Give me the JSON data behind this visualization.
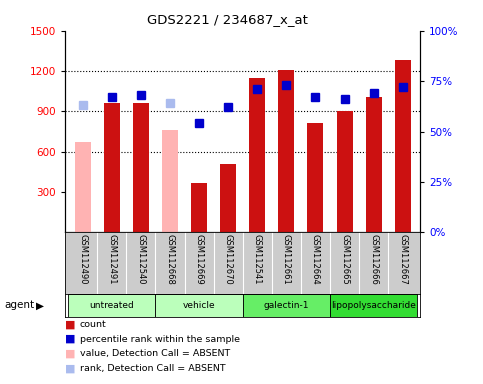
{
  "title": "GDS2221 / 234687_x_at",
  "samples": [
    "GSM112490",
    "GSM112491",
    "GSM112540",
    "GSM112668",
    "GSM112669",
    "GSM112670",
    "GSM112541",
    "GSM112661",
    "GSM112664",
    "GSM112665",
    "GSM112666",
    "GSM112667"
  ],
  "bar_values": [
    670,
    960,
    960,
    760,
    370,
    510,
    1150,
    1210,
    810,
    900,
    1010,
    1280
  ],
  "bar_absent": [
    true,
    false,
    false,
    true,
    false,
    false,
    false,
    false,
    false,
    false,
    false,
    false
  ],
  "percentile_pct": [
    63,
    67,
    68,
    64,
    54,
    62,
    71,
    73,
    67,
    66,
    69,
    72
  ],
  "percentile_absent": [
    true,
    false,
    false,
    true,
    false,
    false,
    false,
    false,
    false,
    false,
    false,
    false
  ],
  "groups": [
    {
      "label": "untreated",
      "indices": [
        0,
        1,
        2
      ]
    },
    {
      "label": "vehicle",
      "indices": [
        3,
        4,
        5
      ]
    },
    {
      "label": "galectin-1",
      "indices": [
        6,
        7,
        8
      ]
    },
    {
      "label": "lipopolysaccharide",
      "indices": [
        9,
        10,
        11
      ]
    }
  ],
  "ylim_left": [
    0,
    1500
  ],
  "ylim_right": [
    0,
    100
  ],
  "yticks_left": [
    300,
    600,
    900,
    1200,
    1500
  ],
  "yticks_right": [
    0,
    25,
    50,
    75,
    100
  ],
  "bar_color_normal": "#CC1111",
  "bar_color_absent": "#FFB3B3",
  "dot_color_normal": "#0000CC",
  "dot_color_absent": "#AABBEE",
  "sample_area_color": "#CCCCCC",
  "agent_area_color": "#AAFFAA",
  "plot_bg": "#FFFFFF"
}
